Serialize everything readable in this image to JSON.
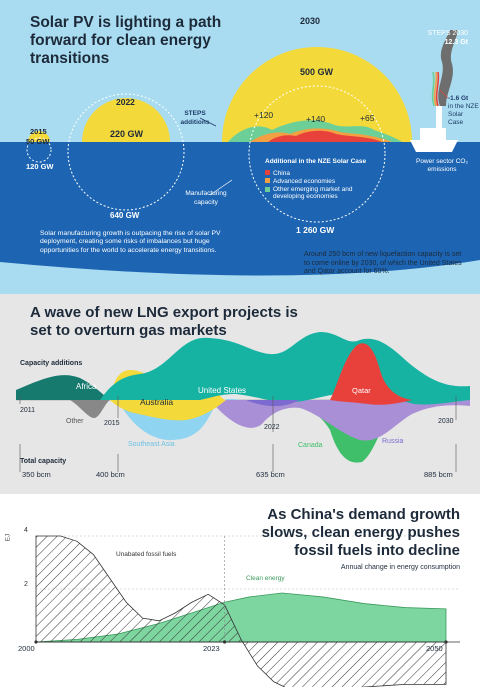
{
  "colors": {
    "sky": "#a9dcf0",
    "sea": "#1d65b3",
    "sun": "#f4d93a",
    "china": "#e8413c",
    "advanced": "#f2a041",
    "emerging": "#6dcf98",
    "navy": "#1d3a6a",
    "gasBg": "#e6e6e6",
    "green": "#7dd6a0"
  },
  "solar": {
    "title": "Solar PV is lighting a path forward for clean energy transitions",
    "steps_label": "STEPS additions",
    "mfg_label": "Manufacturing capacity",
    "legend_title": "Additional in the NZE Solar Case",
    "legend": [
      {
        "label": "China",
        "color": "#e8413c"
      },
      {
        "label": "Advanced economies",
        "color": "#f2a041"
      },
      {
        "label": "Other emerging market and developing economies",
        "color": "#6dcf98"
      }
    ],
    "body": "Solar manufacturing growth is outpacing the rise of solar PV deployment, creating some risks of imbalances but huge opportunities for the world to accelerate energy transitions.",
    "steps2030_a": "STEPS 2030",
    "steps2030_b": "12.3 Gt",
    "nze_a": "-1.6 Gt",
    "nze_b": "in the NZE",
    "nze_c": "Solar Case",
    "ship_label": "Power sector CO₂ emissions",
    "chart_data": {
      "type": "bubble",
      "years": [
        "2015",
        "2022",
        "2030"
      ],
      "steps_additions_labels": [
        "50 GW",
        "220 GW",
        "500 GW"
      ],
      "manufacturing_capacity_labels": [
        "120 GW",
        "640 GW",
        "1 260 GW"
      ],
      "nze_additions": [
        "+120",
        "+140",
        "+65"
      ]
    }
  },
  "lng": {
    "title": "A wave of new LNG export projects is set to overturn gas markets",
    "note": "Around 250 bcm of new liquefaction capacity is set to come online by 2030, of which the United States and Qatar account for 60%.",
    "cap_add_label": "Capacity additions",
    "total_label": "Total capacity",
    "chart_data": {
      "type": "area",
      "x_ticks": [
        "2011",
        "2015",
        "2022",
        "2030"
      ],
      "total_capacity": [
        "350 bcm",
        "400 bcm",
        "635 bcm",
        "885 bcm"
      ],
      "series": [
        "Africa",
        "Other",
        "Australia",
        "Southeast Asia",
        "United States",
        "Canada",
        "Qatar",
        "Russia"
      ]
    }
  },
  "china": {
    "title": "As China's demand growth slows, clean energy pushes fossil fuels into decline",
    "subtitle": "Annual change in energy consumption",
    "ylabel": "EJ",
    "chart_data": {
      "type": "area",
      "x_ticks": [
        "2000",
        "2023",
        "2050"
      ],
      "y_ticks": [
        "4",
        "2"
      ],
      "ylim": [
        -3.2,
        4.3
      ],
      "series": [
        {
          "name": "Unabated fossil fuels",
          "x": [
            2000,
            2003,
            2005,
            2007,
            2009,
            2011,
            2013,
            2015,
            2017,
            2019,
            2021,
            2023,
            2025,
            2027,
            2029,
            2031,
            2033,
            2035,
            2040,
            2045,
            2050
          ],
          "values": [
            4,
            4,
            3.8,
            3.3,
            2.4,
            1.5,
            0.9,
            0.8,
            1.1,
            1.5,
            1.8,
            1.4,
            0.1,
            -0.9,
            -1.5,
            -1.8,
            -1.9,
            -1.9,
            -1.7,
            -1.6,
            -1.6
          ]
        },
        {
          "name": "Clean energy",
          "x": [
            2000,
            2005,
            2010,
            2015,
            2020,
            2023,
            2026,
            2030,
            2035,
            2040,
            2045,
            2050
          ],
          "values": [
            0,
            0.1,
            0.3,
            0.7,
            1.2,
            1.5,
            1.7,
            1.85,
            1.7,
            1.45,
            1.3,
            1.25
          ]
        }
      ]
    }
  }
}
